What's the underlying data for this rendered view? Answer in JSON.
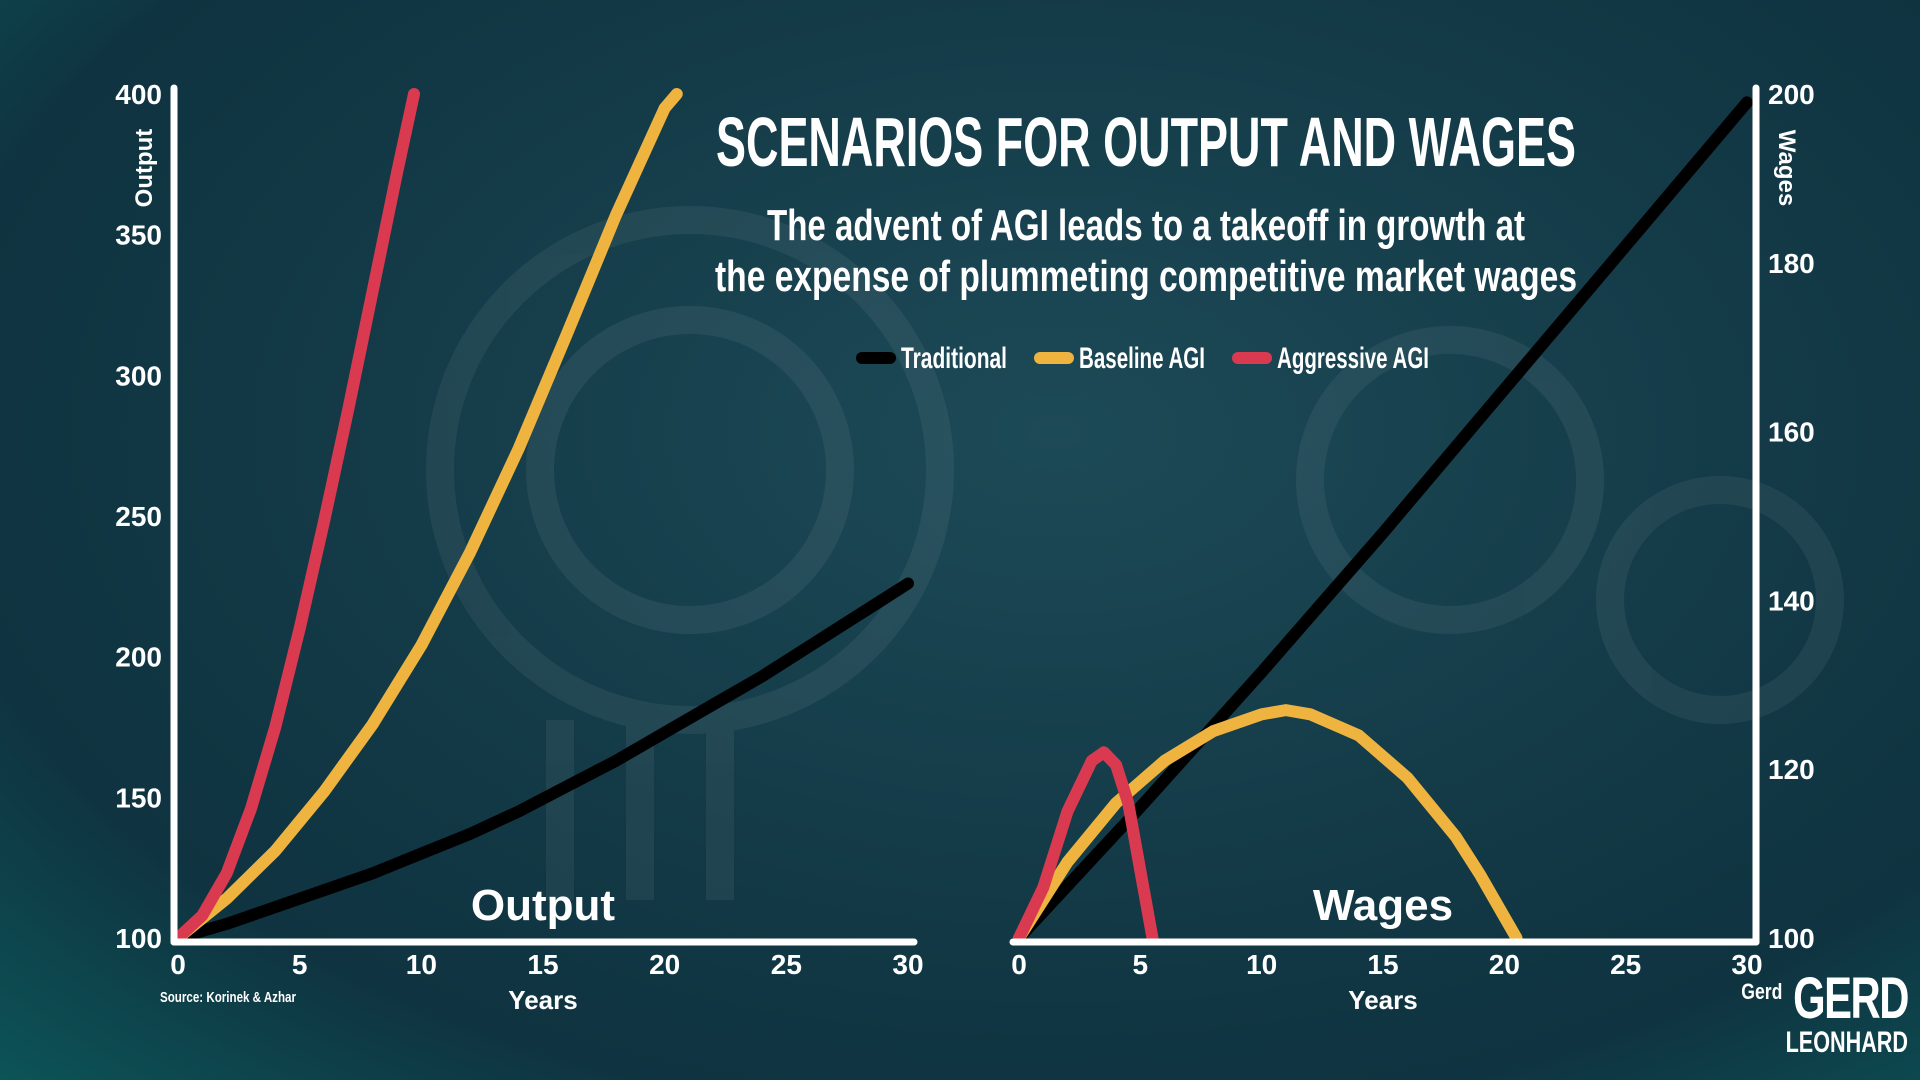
{
  "header": {
    "title": "SCENARIOS FOR OUTPUT AND WAGES",
    "subtitle_line1": "The advent of AGI leads to a takeoff in growth at",
    "subtitle_line2": "the expense of plummeting competitive market wages"
  },
  "legend": {
    "placement": "top-center",
    "items": [
      {
        "label": "Traditional",
        "color": "#000000"
      },
      {
        "label": "Baseline AGI",
        "color": "#efb43f"
      },
      {
        "label": "Aggressive AGI",
        "color": "#d93a4f"
      }
    ]
  },
  "source": "Source: Korinek & Azhar",
  "brand": {
    "small": "Gerd",
    "line1": "GERD",
    "line2": "LEONHARD"
  },
  "chart_data": [
    {
      "type": "line",
      "title": "Output",
      "xlabel": "Years",
      "ylabel": "Output",
      "xlim": [
        0,
        30
      ],
      "ylim": [
        100,
        400
      ],
      "xticks": [
        0,
        5,
        10,
        15,
        20,
        25,
        30
      ],
      "yticks": [
        100,
        150,
        200,
        250,
        300,
        350,
        400
      ],
      "y_axis_side": "left",
      "grid": false,
      "series": [
        {
          "name": "Traditional",
          "color": "#000000",
          "x": [
            0,
            2,
            4,
            6,
            8,
            10,
            12,
            14,
            16,
            18,
            20,
            22,
            24,
            26,
            28,
            30
          ],
          "y": [
            100,
            105,
            111,
            117,
            123,
            130,
            137,
            145,
            154,
            163,
            173,
            183,
            193,
            204,
            215,
            226
          ]
        },
        {
          "name": "Baseline AGI",
          "color": "#efb43f",
          "x": [
            0,
            2,
            4,
            6,
            8,
            10,
            12,
            14,
            16,
            18,
            20,
            20.5
          ],
          "y": [
            100,
            114,
            131,
            152,
            176,
            204,
            237,
            274,
            315,
            357,
            395,
            400
          ]
        },
        {
          "name": "Aggressive AGI",
          "color": "#d93a4f",
          "x": [
            0,
            1,
            2,
            3,
            4,
            5,
            6,
            7,
            8,
            9,
            9.7
          ],
          "y": [
            100,
            108,
            123,
            146,
            175,
            210,
            248,
            288,
            330,
            372,
            400
          ]
        }
      ]
    },
    {
      "type": "line",
      "title": "Wages",
      "xlabel": "Years",
      "ylabel": "Wages",
      "xlim": [
        0,
        30
      ],
      "ylim": [
        100,
        200
      ],
      "xticks": [
        0,
        5,
        10,
        15,
        20,
        25,
        30
      ],
      "yticks": [
        100,
        120,
        140,
        160,
        180,
        200
      ],
      "y_axis_side": "right",
      "grid": false,
      "series": [
        {
          "name": "Traditional",
          "color": "#000000",
          "x": [
            0,
            5,
            10,
            15,
            20,
            25,
            30
          ],
          "y": [
            100,
            115.5,
            131.5,
            148,
            165,
            182,
            199
          ]
        },
        {
          "name": "Baseline AGI",
          "color": "#efb43f",
          "x": [
            0,
            2,
            4,
            6,
            8,
            10,
            11,
            12,
            14,
            16,
            18,
            19,
            20,
            20.5
          ],
          "y": [
            100,
            109,
            116,
            121,
            124.5,
            126.5,
            127,
            126.5,
            124,
            119,
            112,
            107.5,
            102.5,
            100
          ]
        },
        {
          "name": "Aggressive AGI",
          "color": "#d93a4f",
          "x": [
            0,
            1,
            2,
            3,
            3.5,
            4,
            4.5,
            5,
            5.5
          ],
          "y": [
            100,
            106,
            115,
            121,
            122,
            120.5,
            116,
            108,
            100
          ]
        }
      ]
    }
  ]
}
